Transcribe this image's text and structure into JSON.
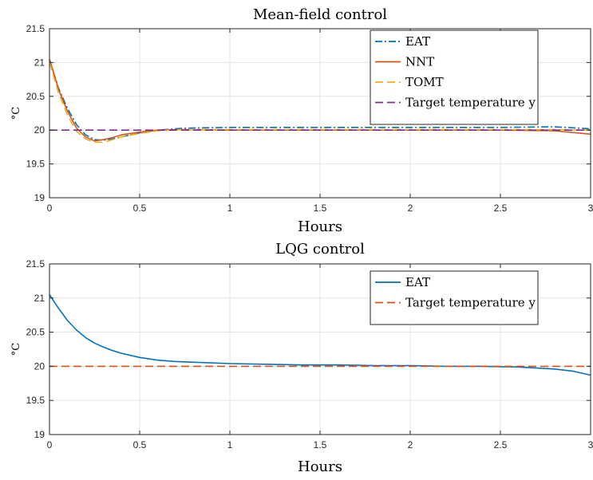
{
  "chart_data": [
    {
      "type": "line",
      "title": "Mean-field control",
      "xlabel": "Hours",
      "ylabel": "°C",
      "xlim": [
        0,
        3
      ],
      "ylim": [
        19,
        21.5
      ],
      "xticks": [
        "0",
        "0.5",
        "1",
        "1.5",
        "2",
        "2.5",
        "3"
      ],
      "yticks": [
        "19",
        "19.5",
        "20",
        "20.5",
        "21",
        "21.5"
      ],
      "grid": true,
      "legend_position": "top-right",
      "series": [
        {
          "name": "EAT",
          "color": "#0072BD",
          "dash": "9,3,2,3",
          "x": [
            0,
            0.05,
            0.1,
            0.15,
            0.2,
            0.25,
            0.3,
            0.35,
            0.4,
            0.5,
            0.6,
            0.75,
            1.0,
            1.5,
            2.0,
            2.5,
            2.8,
            3.0
          ],
          "y": [
            21.05,
            20.62,
            20.32,
            20.08,
            19.93,
            19.86,
            19.85,
            19.87,
            19.9,
            19.96,
            20.0,
            20.03,
            20.04,
            20.04,
            20.04,
            20.04,
            20.05,
            20.02
          ]
        },
        {
          "name": "NNT",
          "color": "#D95319",
          "dash": "",
          "x": [
            0,
            0.05,
            0.1,
            0.15,
            0.2,
            0.25,
            0.3,
            0.35,
            0.4,
            0.5,
            0.6,
            0.75,
            1.0,
            1.5,
            2.0,
            2.5,
            2.8,
            3.0
          ],
          "y": [
            21.05,
            20.6,
            20.28,
            20.03,
            19.9,
            19.84,
            19.86,
            19.89,
            19.93,
            19.97,
            20.0,
            20.01,
            20.0,
            20.0,
            20.0,
            20.0,
            19.99,
            19.94
          ]
        },
        {
          "name": "TOMT",
          "color": "#EDB120",
          "dash": "10,5",
          "x": [
            0,
            0.05,
            0.1,
            0.15,
            0.2,
            0.25,
            0.3,
            0.35,
            0.4,
            0.5,
            0.6,
            0.75,
            1.0,
            1.5,
            2.0,
            2.5,
            2.8,
            3.0
          ],
          "y": [
            21.0,
            20.55,
            20.22,
            19.98,
            19.87,
            19.82,
            19.82,
            19.86,
            19.9,
            19.95,
            19.99,
            20.01,
            20.01,
            20.01,
            20.01,
            20.01,
            20.01,
            20.0
          ]
        },
        {
          "name": "Target temperature y",
          "color": "#7E2F8E",
          "dash": "10,5",
          "x": [
            0,
            3
          ],
          "y": [
            20,
            20
          ]
        }
      ]
    },
    {
      "type": "line",
      "title": "LQG control",
      "xlabel": "Hours",
      "ylabel": "°C",
      "xlim": [
        0,
        3
      ],
      "ylim": [
        19,
        21.5
      ],
      "xticks": [
        "0",
        "0.5",
        "1",
        "1.5",
        "2",
        "2.5",
        "3"
      ],
      "yticks": [
        "19",
        "19.5",
        "20",
        "20.5",
        "21",
        "21.5"
      ],
      "grid": true,
      "legend_position": "top-right",
      "series": [
        {
          "name": "EAT",
          "color": "#0072BD",
          "dash": "",
          "x": [
            0,
            0.05,
            0.1,
            0.15,
            0.2,
            0.25,
            0.3,
            0.35,
            0.4,
            0.5,
            0.6,
            0.7,
            0.8,
            1.0,
            1.2,
            1.4,
            1.6,
            1.8,
            2.0,
            2.2,
            2.4,
            2.6,
            2.8,
            2.9,
            3.0
          ],
          "y": [
            21.05,
            20.85,
            20.67,
            20.53,
            20.42,
            20.34,
            20.28,
            20.23,
            20.19,
            20.13,
            20.09,
            20.07,
            20.06,
            20.04,
            20.03,
            20.02,
            20.02,
            20.01,
            20.01,
            20.0,
            20.0,
            19.99,
            19.96,
            19.93,
            19.87
          ]
        },
        {
          "name": "Target temperature y",
          "color": "#D95319",
          "dash": "10,5",
          "x": [
            0,
            3
          ],
          "y": [
            20,
            20
          ]
        }
      ]
    }
  ]
}
